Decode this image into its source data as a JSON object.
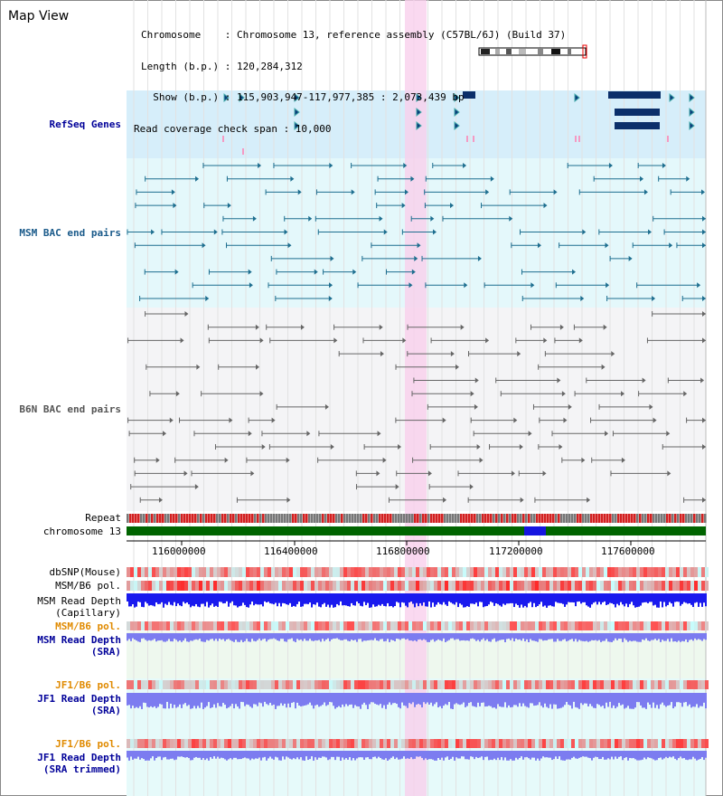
{
  "title": "Map View",
  "info": {
    "lines": [
      "Chromosome    : Chromosome 13, reference assembly (C57BL/6J) (Build 37)",
      "Length (b.p.) : 120,284,312",
      "  Show (b.p.) : 115,903,947-117,977,385 : 2,073,439 bp",
      "Read coverage check span : 10,000"
    ]
  },
  "tracks": {
    "refseq": "RefSeq Genes",
    "msm_bac": "MSM BAC end pairs",
    "b6n_bac": "B6N BAC end pairs",
    "repeat": "Repeat",
    "chromosome": "chromosome 13",
    "dbsnp": "dbSNP(Mouse)",
    "msm_b6_pol": "MSM/B6 pol.",
    "msm_depth_cap": "MSM Read Depth",
    "msm_depth_cap2": "(Capillary)",
    "msm_b6_pol2": "MSM/B6 pol.",
    "msm_depth_sra": "MSM Read Depth",
    "msm_depth_sra2": "(SRA)",
    "jf1_pol": "JF1/B6 pol.",
    "jf1_depth": "JF1 Read Depth",
    "jf1_depth2": "(SRA)",
    "jf1_pol2": "JF1/B6 pol.",
    "jf1_depth_t": "JF1 Read Depth",
    "jf1_depth_t2": "(SRA trimmed)"
  },
  "axis": {
    "ticks": [
      "116000000",
      "116400000",
      "116800000",
      "117200000",
      "117600000"
    ]
  },
  "colors": {
    "highlight": "#f9d0ec",
    "refseq_bg": "#d6eefa",
    "msm_bg": "#e4f8fb",
    "b6n_bg": "#f4f4f6",
    "chrom_green": "#006400",
    "depth_blue": "#1a1aee",
    "sra_blue": "#7c7cf0"
  }
}
